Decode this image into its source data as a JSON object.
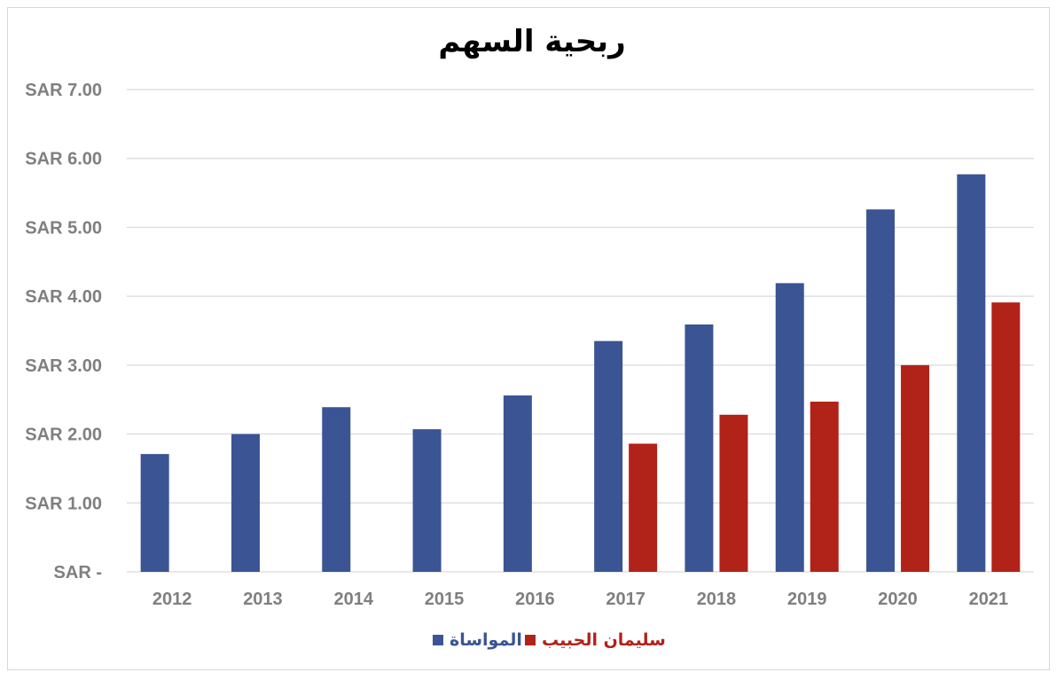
{
  "chart_data": {
    "type": "bar",
    "title": "ربحية السهم",
    "categories": [
      "2012",
      "2013",
      "2014",
      "2015",
      "2016",
      "2017",
      "2018",
      "2019",
      "2020",
      "2021"
    ],
    "series": [
      {
        "name": "المواساة",
        "color": "#3a5494",
        "values": [
          1.71,
          2.0,
          2.39,
          2.07,
          2.56,
          3.35,
          3.59,
          4.19,
          5.26,
          5.77
        ]
      },
      {
        "name": "سليمان الحبيب",
        "color": "#b12219",
        "values": [
          null,
          null,
          null,
          null,
          null,
          1.86,
          2.28,
          2.47,
          3.0,
          3.91
        ]
      }
    ],
    "ylim": [
      0,
      7
    ],
    "yticks": [
      0,
      1,
      2,
      3,
      4,
      5,
      6,
      7
    ],
    "ytick_labels": [
      "SAR -",
      "SAR 1.00",
      "SAR 2.00",
      "SAR 3.00",
      "SAR 4.00",
      "SAR 5.00",
      "SAR 6.00",
      "SAR 7.00"
    ],
    "xlabel": "",
    "ylabel": "",
    "grid": true,
    "legend_position": "bottom-center",
    "gridline_color": "#d9d9d9",
    "tick_color": "#7f7f7f"
  }
}
